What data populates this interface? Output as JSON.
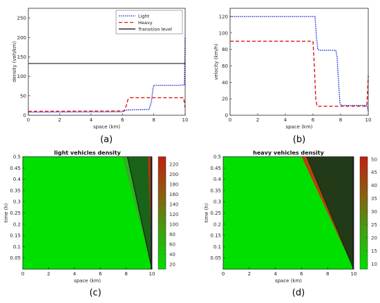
{
  "chart_data": [
    {
      "type": "line",
      "panel_label": "(a)",
      "xlabel": "space (km)",
      "ylabel": "density (veh/km)",
      "xlim": [
        0,
        10
      ],
      "ylim": [
        0,
        275
      ],
      "xticks": [
        0,
        2,
        4,
        6,
        8,
        10
      ],
      "yticks": [
        0,
        50,
        100,
        150,
        200,
        250
      ],
      "grid": false,
      "legend_position": "top-right",
      "series": [
        {
          "name": "Light",
          "color": "#1f2bd6",
          "style": "dotted",
          "x": [
            0,
            6.0,
            6.2,
            6.5,
            7.7,
            7.85,
            7.95,
            8.0,
            9.6,
            9.95,
            10.0
          ],
          "y": [
            8,
            9,
            13,
            14,
            15,
            35,
            70,
            77,
            77,
            78,
            200
          ]
        },
        {
          "name": "Heavy",
          "color": "#e01010",
          "style": "dashed",
          "x": [
            0,
            6.1,
            6.25,
            6.35,
            6.5,
            9.9,
            10.0
          ],
          "y": [
            10,
            11,
            25,
            40,
            45,
            45,
            20
          ]
        },
        {
          "name": "Transition level",
          "color": "#000000",
          "style": "solid",
          "x": [
            0,
            10
          ],
          "y": [
            133,
            133
          ]
        }
      ]
    },
    {
      "type": "line",
      "panel_label": "(b)",
      "xlabel": "space (km)",
      "ylabel": "velocity (km/h)",
      "xlim": [
        0,
        10
      ],
      "ylim": [
        0,
        130
      ],
      "xticks": [
        0,
        2,
        4,
        6,
        8,
        10
      ],
      "yticks": [
        0,
        20,
        40,
        60,
        80,
        100,
        120
      ],
      "grid": false,
      "series": [
        {
          "color": "#1f2bd6",
          "style": "dotted",
          "x": [
            0,
            6.15,
            6.25,
            6.35,
            6.5,
            7.65,
            7.75,
            7.85,
            7.95,
            8.05,
            9.9,
            10.0
          ],
          "y": [
            120,
            120,
            95,
            80,
            79,
            79,
            70,
            40,
            15,
            12,
            12,
            5
          ]
        },
        {
          "color": "#e01010",
          "style": "dashed",
          "x": [
            0,
            6.0,
            6.1,
            6.2,
            6.3,
            9.9,
            10.0
          ],
          "y": [
            90,
            90,
            60,
            20,
            11,
            11,
            48
          ]
        }
      ]
    },
    {
      "type": "heatmap",
      "panel_label": "(c)",
      "title": "light vehicles density",
      "xlabel": "space (km)",
      "ylabel": "time (h)",
      "xlim": [
        0,
        10
      ],
      "ylim": [
        0,
        0.5
      ],
      "xticks": [
        0,
        2,
        4,
        6,
        8,
        10
      ],
      "yticks": [
        0.05,
        0.1,
        0.15,
        0.2,
        0.25,
        0.3,
        0.35,
        0.4,
        0.45,
        0.5
      ],
      "colorbar_ticks": [
        20,
        40,
        60,
        80,
        100,
        120,
        140,
        160,
        180,
        200,
        220
      ],
      "colorbar_range": [
        10,
        235
      ],
      "colors": {
        "low": "#00e000",
        "mid": "#30b020",
        "edge": "#186018",
        "high": "#c03010"
      },
      "bands": [
        {
          "x_at_t0": 10,
          "x_at_t05": 7.7,
          "level": "mid"
        },
        {
          "x_at_t0": 10,
          "x_at_t05": 8.1,
          "level": "edge"
        },
        {
          "x_at_t0": 10,
          "x_at_t05": 9.7,
          "level": "high"
        }
      ]
    },
    {
      "type": "heatmap",
      "panel_label": "(d)",
      "title": "heavy vehicles density",
      "xlabel": "space (km)",
      "ylabel": "time (h)",
      "xlim": [
        0,
        10
      ],
      "ylim": [
        0,
        0.5
      ],
      "xticks": [
        0,
        2,
        4,
        6,
        8,
        10
      ],
      "yticks": [
        0.05,
        0.1,
        0.15,
        0.2,
        0.25,
        0.3,
        0.35,
        0.4,
        0.45,
        0.5
      ],
      "colorbar_ticks": [
        10,
        15,
        20,
        25,
        30,
        35,
        40,
        45,
        50
      ],
      "colorbar_range": [
        8,
        51
      ],
      "colors": {
        "low": "#00e000",
        "mid": "#b84010",
        "edge": "#1a3a1a",
        "high": "#c03010"
      },
      "bands": [
        {
          "x_at_t0": 10,
          "x_at_t05": 6.0,
          "level": "mid"
        },
        {
          "x_at_t0": 10,
          "x_at_t05": 6.4,
          "level": "edge"
        },
        {
          "x_at_t0": 10,
          "x_at_t05": 9.9,
          "level": "high"
        }
      ]
    }
  ]
}
